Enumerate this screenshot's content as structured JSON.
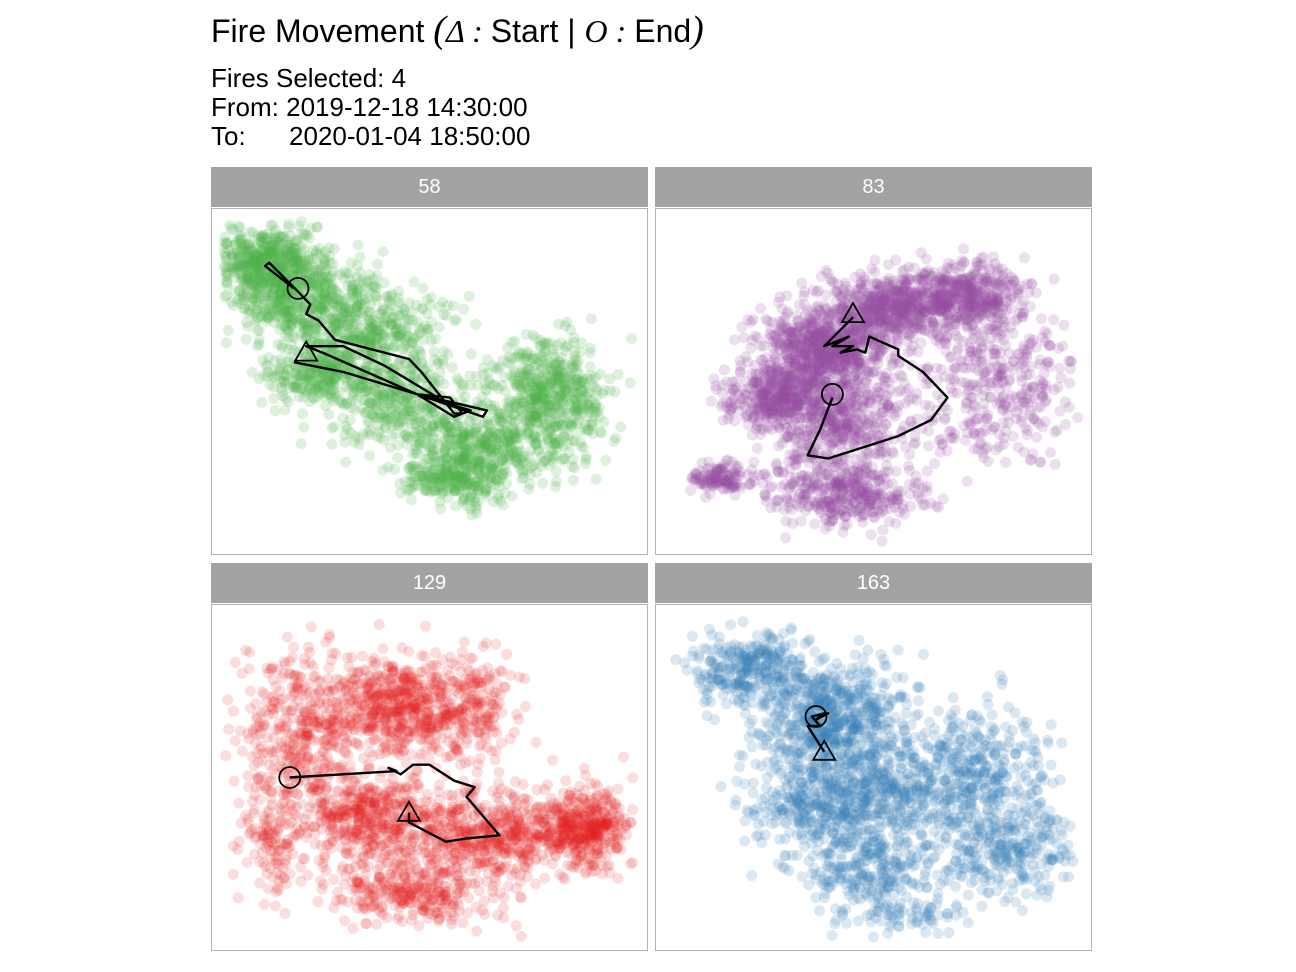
{
  "title": {
    "prefix": "Fire Movement ",
    "open_paren": "(",
    "start_symbol": "Δ",
    "sep1": " : ",
    "start_label": "Start",
    "divider": " | ",
    "end_symbol": "O",
    "sep2": " : ",
    "end_label": "End",
    "close_paren": ")"
  },
  "subtitle": {
    "line1": "Fires Selected: 4",
    "line2": "From: 2019-12-18 14:30:00",
    "line3": "To:      2020-01-04 18:50:00"
  },
  "chart_data": [
    {
      "type": "scatter",
      "panel": "58",
      "color": "#4DAF4A",
      "point_alpha": 0.18,
      "note_marker": "triangle = start, circle = end",
      "blobs": [
        [
          0.1,
          0.12,
          0.09,
          0.07,
          420
        ],
        [
          0.18,
          0.24,
          0.12,
          0.1,
          500
        ],
        [
          0.36,
          0.36,
          0.13,
          0.11,
          420
        ],
        [
          0.45,
          0.58,
          0.13,
          0.09,
          320
        ],
        [
          0.63,
          0.72,
          0.12,
          0.08,
          400
        ],
        [
          0.79,
          0.54,
          0.09,
          0.12,
          520
        ],
        [
          0.25,
          0.48,
          0.1,
          0.06,
          260
        ],
        [
          0.55,
          0.81,
          0.08,
          0.05,
          200
        ]
      ],
      "path": [
        [
          0.17,
          0.44
        ],
        [
          0.29,
          0.47
        ],
        [
          0.6,
          0.59
        ],
        [
          0.56,
          0.61
        ],
        [
          0.47,
          0.54
        ],
        [
          0.24,
          0.41
        ],
        [
          0.2,
          0.39
        ],
        [
          0.29,
          0.39
        ],
        [
          0.39,
          0.45
        ],
        [
          0.52,
          0.55
        ],
        [
          0.47,
          0.54
        ],
        [
          0.64,
          0.59
        ],
        [
          0.63,
          0.61
        ],
        [
          0.47,
          0.54
        ],
        [
          0.55,
          0.55
        ],
        [
          0.58,
          0.6
        ],
        [
          0.56,
          0.6
        ],
        [
          0.48,
          0.47
        ],
        [
          0.45,
          0.43
        ],
        [
          0.27,
          0.37
        ],
        [
          0.23,
          0.31
        ],
        [
          0.2,
          0.29
        ],
        [
          0.21,
          0.26
        ],
        [
          0.18,
          0.22
        ],
        [
          0.11,
          0.13
        ],
        [
          0.1,
          0.14
        ],
        [
          0.17,
          0.21
        ]
      ],
      "start": [
        0.2,
        0.41
      ],
      "end": [
        0.18,
        0.21
      ]
    },
    {
      "type": "scatter",
      "panel": "83",
      "color": "#984EA3",
      "point_alpha": 0.18,
      "note_marker": "triangle = start, circle = end",
      "blobs": [
        [
          0.38,
          0.4,
          0.1,
          0.08,
          650
        ],
        [
          0.53,
          0.27,
          0.1,
          0.07,
          520
        ],
        [
          0.72,
          0.23,
          0.1,
          0.07,
          450
        ],
        [
          0.26,
          0.55,
          0.08,
          0.06,
          350
        ],
        [
          0.4,
          0.62,
          0.12,
          0.12,
          550
        ],
        [
          0.8,
          0.5,
          0.14,
          0.18,
          380
        ],
        [
          0.42,
          0.85,
          0.12,
          0.07,
          380
        ],
        [
          0.12,
          0.8,
          0.05,
          0.03,
          120
        ]
      ],
      "path": [
        [
          0.45,
          0.3
        ],
        [
          0.38,
          0.39
        ],
        [
          0.44,
          0.36
        ],
        [
          0.4,
          0.39
        ],
        [
          0.45,
          0.39
        ],
        [
          0.42,
          0.41
        ],
        [
          0.46,
          0.4
        ],
        [
          0.48,
          0.41
        ],
        [
          0.49,
          0.36
        ],
        [
          0.56,
          0.4
        ],
        [
          0.56,
          0.42
        ],
        [
          0.62,
          0.47
        ],
        [
          0.68,
          0.55
        ],
        [
          0.64,
          0.62
        ],
        [
          0.56,
          0.67
        ],
        [
          0.39,
          0.74
        ],
        [
          0.34,
          0.73
        ],
        [
          0.37,
          0.65
        ],
        [
          0.4,
          0.55
        ]
      ],
      "start": [
        0.45,
        0.29
      ],
      "end": [
        0.4,
        0.54
      ]
    },
    {
      "type": "scatter",
      "panel": "129",
      "color": "#E41A1C",
      "point_alpha": 0.15,
      "note_marker": "triangle = start, circle = end",
      "blobs": [
        [
          0.2,
          0.35,
          0.12,
          0.18,
          450
        ],
        [
          0.42,
          0.27,
          0.1,
          0.1,
          420
        ],
        [
          0.57,
          0.3,
          0.1,
          0.12,
          280
        ],
        [
          0.35,
          0.62,
          0.12,
          0.1,
          450
        ],
        [
          0.64,
          0.68,
          0.14,
          0.09,
          550
        ],
        [
          0.88,
          0.66,
          0.07,
          0.08,
          400
        ],
        [
          0.45,
          0.86,
          0.14,
          0.07,
          300
        ],
        [
          0.12,
          0.7,
          0.05,
          0.1,
          120
        ]
      ],
      "path": [
        [
          0.45,
          0.61
        ],
        [
          0.45,
          0.64
        ],
        [
          0.54,
          0.7
        ],
        [
          0.59,
          0.69
        ],
        [
          0.67,
          0.68
        ],
        [
          0.63,
          0.62
        ],
        [
          0.59,
          0.56
        ],
        [
          0.61,
          0.53
        ],
        [
          0.56,
          0.51
        ],
        [
          0.5,
          0.46
        ],
        [
          0.46,
          0.46
        ],
        [
          0.43,
          0.49
        ],
        [
          0.4,
          0.47
        ],
        [
          0.42,
          0.48
        ],
        [
          0.16,
          0.5
        ]
      ],
      "start": [
        0.45,
        0.61
      ],
      "end": [
        0.16,
        0.5
      ]
    },
    {
      "type": "scatter",
      "panel": "163",
      "color": "#377EB8",
      "point_alpha": 0.18,
      "note_marker": "triangle = start, circle = end",
      "blobs": [
        [
          0.2,
          0.16,
          0.09,
          0.08,
          300
        ],
        [
          0.4,
          0.33,
          0.12,
          0.12,
          650
        ],
        [
          0.36,
          0.58,
          0.1,
          0.1,
          350
        ],
        [
          0.55,
          0.55,
          0.1,
          0.1,
          300
        ],
        [
          0.75,
          0.48,
          0.12,
          0.12,
          350
        ],
        [
          0.82,
          0.72,
          0.12,
          0.1,
          300
        ],
        [
          0.48,
          0.78,
          0.1,
          0.08,
          250
        ],
        [
          0.56,
          0.93,
          0.12,
          0.04,
          80
        ]
      ],
      "path": [
        [
          0.38,
          0.42
        ],
        [
          0.34,
          0.34
        ],
        [
          0.37,
          0.34
        ],
        [
          0.35,
          0.31
        ],
        [
          0.38,
          0.3
        ],
        [
          0.36,
          0.32
        ],
        [
          0.39,
          0.3
        ],
        [
          0.35,
          0.31
        ]
      ],
      "start": [
        0.38,
        0.42
      ],
      "end": [
        0.36,
        0.31
      ]
    }
  ]
}
